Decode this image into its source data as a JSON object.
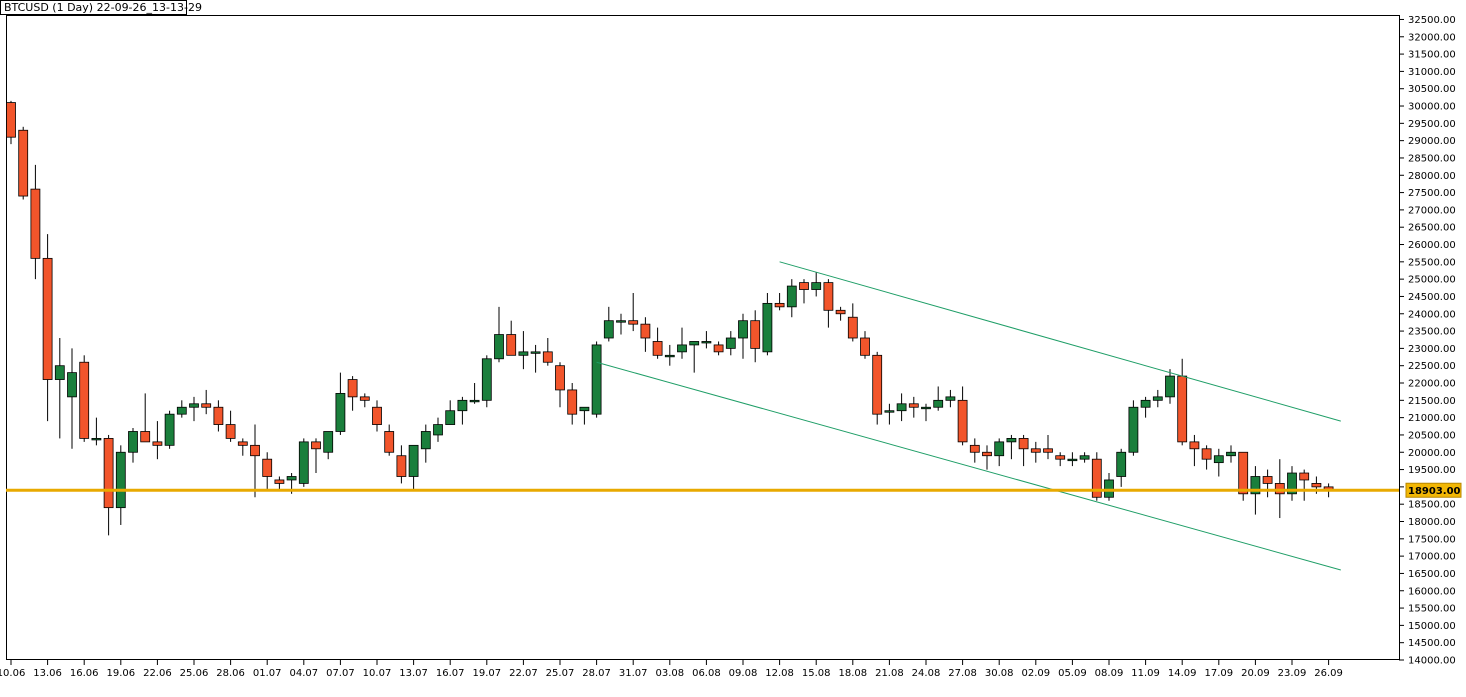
{
  "window": {
    "title": "BTCUSD (1 Day) 22-09-26_13-13-29"
  },
  "colors": {
    "up": "#1a7f3c",
    "down": "#f2552b",
    "wick": "#000000",
    "channel": "#1f9e67",
    "level": "#e8a900",
    "level_label_bg": "#f2b705"
  },
  "chart_data": {
    "type": "candlestick",
    "title": "BTCUSD (1 Day) 22-09-26_13-13-29",
    "ylim": [
      14000,
      32600
    ],
    "y_ticks": [
      14000,
      14500,
      15000,
      15500,
      16000,
      16500,
      17000,
      17500,
      18000,
      18500,
      19000,
      19500,
      20000,
      20500,
      21000,
      21500,
      22000,
      22500,
      23000,
      23500,
      24000,
      24500,
      25000,
      25500,
      26000,
      26500,
      27000,
      27500,
      28000,
      28500,
      29000,
      29500,
      30000,
      30500,
      31000,
      31500,
      32000,
      32500
    ],
    "y_tick_labels": [
      "14000.00",
      "14500.00",
      "15000.00",
      "15500.00",
      "16000.00",
      "16500.00",
      "17000.00",
      "17500.00",
      "18000.00",
      "18500.00",
      "19000.00",
      "19500.00",
      "20000.00",
      "20500.00",
      "21000.00",
      "21500.00",
      "22000.00",
      "22500.00",
      "23000.00",
      "23500.00",
      "24000.00",
      "24500.00",
      "25000.00",
      "25500.00",
      "26000.00",
      "26500.00",
      "27000.00",
      "27500.00",
      "28000.00",
      "28500.00",
      "29000.00",
      "29500.00",
      "30000.00",
      "30500.00",
      "31000.00",
      "31500.00",
      "32000.00",
      "32500.00"
    ],
    "x_tick_labels": [
      {
        "i": 0,
        "label": "10.06"
      },
      {
        "i": 3,
        "label": "13.06"
      },
      {
        "i": 6,
        "label": "16.06"
      },
      {
        "i": 9,
        "label": "19.06"
      },
      {
        "i": 12,
        "label": "22.06"
      },
      {
        "i": 15,
        "label": "25.06"
      },
      {
        "i": 18,
        "label": "28.06"
      },
      {
        "i": 21,
        "label": "01.07"
      },
      {
        "i": 24,
        "label": "04.07"
      },
      {
        "i": 27,
        "label": "07.07"
      },
      {
        "i": 30,
        "label": "10.07"
      },
      {
        "i": 33,
        "label": "13.07"
      },
      {
        "i": 36,
        "label": "16.07"
      },
      {
        "i": 39,
        "label": "19.07"
      },
      {
        "i": 42,
        "label": "22.07"
      },
      {
        "i": 45,
        "label": "25.07"
      },
      {
        "i": 48,
        "label": "28.07"
      },
      {
        "i": 51,
        "label": "31.07"
      },
      {
        "i": 54,
        "label": "03.08"
      },
      {
        "i": 57,
        "label": "06.08"
      },
      {
        "i": 60,
        "label": "09.08"
      },
      {
        "i": 63,
        "label": "12.08"
      },
      {
        "i": 66,
        "label": "15.08"
      },
      {
        "i": 69,
        "label": "18.08"
      },
      {
        "i": 72,
        "label": "21.08"
      },
      {
        "i": 75,
        "label": "24.08"
      },
      {
        "i": 78,
        "label": "27.08"
      },
      {
        "i": 81,
        "label": "30.08"
      },
      {
        "i": 84,
        "label": "02.09"
      },
      {
        "i": 87,
        "label": "05.09"
      },
      {
        "i": 90,
        "label": "08.09"
      },
      {
        "i": 93,
        "label": "11.09"
      },
      {
        "i": 96,
        "label": "14.09"
      },
      {
        "i": 99,
        "label": "17.09"
      },
      {
        "i": 102,
        "label": "20.09"
      },
      {
        "i": 105,
        "label": "23.09"
      },
      {
        "i": 108,
        "label": "26.09"
      }
    ],
    "candles": [
      {
        "date": "10.06",
        "o": 30100,
        "h": 30150,
        "l": 28900,
        "c": 29100
      },
      {
        "date": "11.06",
        "o": 29300,
        "h": 29400,
        "l": 27300,
        "c": 27400
      },
      {
        "date": "12.06",
        "o": 27600,
        "h": 28300,
        "l": 25000,
        "c": 25600
      },
      {
        "date": "13.06",
        "o": 25600,
        "h": 26300,
        "l": 20900,
        "c": 22100
      },
      {
        "date": "14.06",
        "o": 22100,
        "h": 23300,
        "l": 20400,
        "c": 22500
      },
      {
        "date": "15.06",
        "o": 21600,
        "h": 23000,
        "l": 20100,
        "c": 22300
      },
      {
        "date": "16.06",
        "o": 22600,
        "h": 22800,
        "l": 20300,
        "c": 20400
      },
      {
        "date": "17.06",
        "o": 20400,
        "h": 21000,
        "l": 20200,
        "c": 20400
      },
      {
        "date": "18.06",
        "o": 20400,
        "h": 20500,
        "l": 17600,
        "c": 18400
      },
      {
        "date": "19.06",
        "o": 18400,
        "h": 20200,
        "l": 17900,
        "c": 20000
      },
      {
        "date": "20.06",
        "o": 20000,
        "h": 20700,
        "l": 19700,
        "c": 20600
      },
      {
        "date": "21.06",
        "o": 20600,
        "h": 21700,
        "l": 20300,
        "c": 20300
      },
      {
        "date": "22.06",
        "o": 20300,
        "h": 20900,
        "l": 19800,
        "c": 20200
      },
      {
        "date": "23.06",
        "o": 20200,
        "h": 21200,
        "l": 20100,
        "c": 21100
      },
      {
        "date": "24.06",
        "o": 21100,
        "h": 21500,
        "l": 21000,
        "c": 21300
      },
      {
        "date": "25.06",
        "o": 21300,
        "h": 21600,
        "l": 20900,
        "c": 21400
      },
      {
        "date": "26.06",
        "o": 21400,
        "h": 21800,
        "l": 21100,
        "c": 21300
      },
      {
        "date": "27.06",
        "o": 21300,
        "h": 21500,
        "l": 20600,
        "c": 20800
      },
      {
        "date": "28.06",
        "o": 20800,
        "h": 21200,
        "l": 20300,
        "c": 20400
      },
      {
        "date": "29.06",
        "o": 20300,
        "h": 20400,
        "l": 19900,
        "c": 20200
      },
      {
        "date": "30.06",
        "o": 20200,
        "h": 20800,
        "l": 18700,
        "c": 19900
      },
      {
        "date": "01.07",
        "o": 19800,
        "h": 20000,
        "l": 18900,
        "c": 19300
      },
      {
        "date": "02.07",
        "o": 19200,
        "h": 19300,
        "l": 18900,
        "c": 19100
      },
      {
        "date": "03.07",
        "o": 19200,
        "h": 19400,
        "l": 18800,
        "c": 19300
      },
      {
        "date": "04.07",
        "o": 19100,
        "h": 20400,
        "l": 19000,
        "c": 20300
      },
      {
        "date": "05.07",
        "o": 20300,
        "h": 20400,
        "l": 19400,
        "c": 20100
      },
      {
        "date": "06.07",
        "o": 20000,
        "h": 20600,
        "l": 19800,
        "c": 20600
      },
      {
        "date": "07.07",
        "o": 20600,
        "h": 22300,
        "l": 20500,
        "c": 21700
      },
      {
        "date": "08.07",
        "o": 22100,
        "h": 22200,
        "l": 21200,
        "c": 21600
      },
      {
        "date": "09.07",
        "o": 21600,
        "h": 21700,
        "l": 21300,
        "c": 21500
      },
      {
        "date": "10.07",
        "o": 21300,
        "h": 21500,
        "l": 20600,
        "c": 20800
      },
      {
        "date": "11.07",
        "o": 20600,
        "h": 20800,
        "l": 19900,
        "c": 20000
      },
      {
        "date": "12.07",
        "o": 19900,
        "h": 20200,
        "l": 19100,
        "c": 19300
      },
      {
        "date": "13.07",
        "o": 19300,
        "h": 20200,
        "l": 18900,
        "c": 20200
      },
      {
        "date": "14.07",
        "o": 20100,
        "h": 20800,
        "l": 19700,
        "c": 20600
      },
      {
        "date": "15.07",
        "o": 20500,
        "h": 21000,
        "l": 20300,
        "c": 20800
      },
      {
        "date": "16.07",
        "o": 20800,
        "h": 21500,
        "l": 20800,
        "c": 21200
      },
      {
        "date": "17.07",
        "o": 21200,
        "h": 21600,
        "l": 20800,
        "c": 21500
      },
      {
        "date": "18.07",
        "o": 21500,
        "h": 22000,
        "l": 21400,
        "c": 21500
      },
      {
        "date": "19.07",
        "o": 21500,
        "h": 22800,
        "l": 21300,
        "c": 22700
      },
      {
        "date": "20.07",
        "o": 22700,
        "h": 24200,
        "l": 22600,
        "c": 23400
      },
      {
        "date": "21.07",
        "o": 23400,
        "h": 23800,
        "l": 22800,
        "c": 22800
      },
      {
        "date": "22.07",
        "o": 22800,
        "h": 23500,
        "l": 22400,
        "c": 22900
      },
      {
        "date": "23.07",
        "o": 22900,
        "h": 23100,
        "l": 22300,
        "c": 22900
      },
      {
        "date": "24.07",
        "o": 22900,
        "h": 23300,
        "l": 22500,
        "c": 22600
      },
      {
        "date": "25.07",
        "o": 22500,
        "h": 22600,
        "l": 21300,
        "c": 21800
      },
      {
        "date": "26.07",
        "o": 21800,
        "h": 22000,
        "l": 20800,
        "c": 21100
      },
      {
        "date": "27.07",
        "o": 21200,
        "h": 21300,
        "l": 20800,
        "c": 21300
      },
      {
        "date": "28.07",
        "o": 21100,
        "h": 23200,
        "l": 21000,
        "c": 23100
      },
      {
        "date": "29.07",
        "o": 23300,
        "h": 24200,
        "l": 23200,
        "c": 23800
      },
      {
        "date": "30.07",
        "o": 23800,
        "h": 24000,
        "l": 23400,
        "c": 23800
      },
      {
        "date": "31.07",
        "o": 23800,
        "h": 24600,
        "l": 23500,
        "c": 23700
      },
      {
        "date": "01.08",
        "o": 23700,
        "h": 23900,
        "l": 22900,
        "c": 23300
      },
      {
        "date": "02.08",
        "o": 23200,
        "h": 23600,
        "l": 22700,
        "c": 22800
      },
      {
        "date": "03.08",
        "o": 22800,
        "h": 23100,
        "l": 22500,
        "c": 22800
      },
      {
        "date": "04.08",
        "o": 22900,
        "h": 23600,
        "l": 22700,
        "c": 23100
      },
      {
        "date": "05.08",
        "o": 23100,
        "h": 23200,
        "l": 22300,
        "c": 23200
      },
      {
        "date": "06.08",
        "o": 23200,
        "h": 23500,
        "l": 23000,
        "c": 23200
      },
      {
        "date": "07.08",
        "o": 23100,
        "h": 23200,
        "l": 22800,
        "c": 22900
      },
      {
        "date": "08.08",
        "o": 23000,
        "h": 23500,
        "l": 22800,
        "c": 23300
      },
      {
        "date": "09.08",
        "o": 23300,
        "h": 24000,
        "l": 22700,
        "c": 23800
      },
      {
        "date": "10.08",
        "o": 23800,
        "h": 24100,
        "l": 22600,
        "c": 23000
      },
      {
        "date": "11.08",
        "o": 22900,
        "h": 24600,
        "l": 22800,
        "c": 24300
      },
      {
        "date": "12.08",
        "o": 24300,
        "h": 24600,
        "l": 24100,
        "c": 24200
      },
      {
        "date": "13.08",
        "o": 24200,
        "h": 25000,
        "l": 23900,
        "c": 24800
      },
      {
        "date": "14.08",
        "o": 24900,
        "h": 25000,
        "l": 24300,
        "c": 24700
      },
      {
        "date": "15.08",
        "o": 24700,
        "h": 25200,
        "l": 24500,
        "c": 24900
      },
      {
        "date": "16.08",
        "o": 24900,
        "h": 25000,
        "l": 23600,
        "c": 24100
      },
      {
        "date": "17.08",
        "o": 24100,
        "h": 24200,
        "l": 23800,
        "c": 24000
      },
      {
        "date": "18.08",
        "o": 23900,
        "h": 24300,
        "l": 23200,
        "c": 23300
      },
      {
        "date": "19.08",
        "o": 23300,
        "h": 23500,
        "l": 22700,
        "c": 22800
      },
      {
        "date": "20.08",
        "o": 22800,
        "h": 22900,
        "l": 20800,
        "c": 21100
      },
      {
        "date": "21.08",
        "o": 21200,
        "h": 21400,
        "l": 20800,
        "c": 21200
      },
      {
        "date": "22.08",
        "o": 21200,
        "h": 21700,
        "l": 20900,
        "c": 21400
      },
      {
        "date": "23.08",
        "o": 21400,
        "h": 21600,
        "l": 21000,
        "c": 21300
      },
      {
        "date": "24.08",
        "o": 21300,
        "h": 21400,
        "l": 20900,
        "c": 21300
      },
      {
        "date": "25.08",
        "o": 21300,
        "h": 21900,
        "l": 21200,
        "c": 21500
      },
      {
        "date": "26.08",
        "o": 21500,
        "h": 21800,
        "l": 21300,
        "c": 21600
      },
      {
        "date": "27.08",
        "o": 21500,
        "h": 21900,
        "l": 20200,
        "c": 20300
      },
      {
        "date": "28.08",
        "o": 20200,
        "h": 20400,
        "l": 19700,
        "c": 20000
      },
      {
        "date": "29.08",
        "o": 20000,
        "h": 20200,
        "l": 19500,
        "c": 19900
      },
      {
        "date": "30.08",
        "o": 19900,
        "h": 20400,
        "l": 19600,
        "c": 20300
      },
      {
        "date": "31.08",
        "o": 20300,
        "h": 20500,
        "l": 19800,
        "c": 20400
      },
      {
        "date": "01.09",
        "o": 20400,
        "h": 20500,
        "l": 19600,
        "c": 20100
      },
      {
        "date": "02.09",
        "o": 20100,
        "h": 20300,
        "l": 19700,
        "c": 20000
      },
      {
        "date": "03.09",
        "o": 20100,
        "h": 20500,
        "l": 19800,
        "c": 20000
      },
      {
        "date": "04.09",
        "o": 19900,
        "h": 20000,
        "l": 19600,
        "c": 19800
      },
      {
        "date": "05.09",
        "o": 19800,
        "h": 20000,
        "l": 19600,
        "c": 19800
      },
      {
        "date": "06.09",
        "o": 19800,
        "h": 20000,
        "l": 19700,
        "c": 19900
      },
      {
        "date": "07.09",
        "o": 19800,
        "h": 20000,
        "l": 18600,
        "c": 18700
      },
      {
        "date": "08.09",
        "o": 18700,
        "h": 19400,
        "l": 18600,
        "c": 19200
      },
      {
        "date": "09.09",
        "o": 19300,
        "h": 20100,
        "l": 19000,
        "c": 20000
      },
      {
        "date": "10.09",
        "o": 20000,
        "h": 21500,
        "l": 19900,
        "c": 21300
      },
      {
        "date": "11.09",
        "o": 21300,
        "h": 21600,
        "l": 21000,
        "c": 21500
      },
      {
        "date": "12.09",
        "o": 21500,
        "h": 21800,
        "l": 21300,
        "c": 21600
      },
      {
        "date": "13.09",
        "o": 21600,
        "h": 22400,
        "l": 21400,
        "c": 22200
      },
      {
        "date": "14.09",
        "o": 22200,
        "h": 22700,
        "l": 20200,
        "c": 20300
      },
      {
        "date": "15.09",
        "o": 20300,
        "h": 20500,
        "l": 19600,
        "c": 20100
      },
      {
        "date": "16.09",
        "o": 20100,
        "h": 20200,
        "l": 19500,
        "c": 19800
      },
      {
        "date": "17.09",
        "o": 19700,
        "h": 20100,
        "l": 19300,
        "c": 19900
      },
      {
        "date": "18.09",
        "o": 19900,
        "h": 20200,
        "l": 19700,
        "c": 20000
      },
      {
        "date": "19.09",
        "o": 20000,
        "h": 20000,
        "l": 18600,
        "c": 18800
      },
      {
        "date": "20.09",
        "o": 18800,
        "h": 19600,
        "l": 18200,
        "c": 19300
      },
      {
        "date": "21.09",
        "o": 19300,
        "h": 19500,
        "l": 18700,
        "c": 19100
      },
      {
        "date": "22.09",
        "o": 19100,
        "h": 19800,
        "l": 18100,
        "c": 18800
      },
      {
        "date": "23.09",
        "o": 18800,
        "h": 19600,
        "l": 18600,
        "c": 19400
      },
      {
        "date": "24.09",
        "o": 19400,
        "h": 19500,
        "l": 18600,
        "c": 19200
      },
      {
        "date": "25.09",
        "o": 19100,
        "h": 19300,
        "l": 18800,
        "c": 19000
      },
      {
        "date": "26.09",
        "o": 19000,
        "h": 19100,
        "l": 18700,
        "c": 18903
      }
    ],
    "channel_upper": {
      "from": {
        "i": 63,
        "price": 25500
      },
      "to": {
        "i": 109,
        "price": 20900
      }
    },
    "channel_lower": {
      "from": {
        "i": 48,
        "price": 22600
      },
      "to": {
        "i": 109,
        "price": 16600
      }
    },
    "horizontal_level": {
      "price": 18903,
      "label": "18903.00"
    },
    "grid": false,
    "legend": "none"
  }
}
